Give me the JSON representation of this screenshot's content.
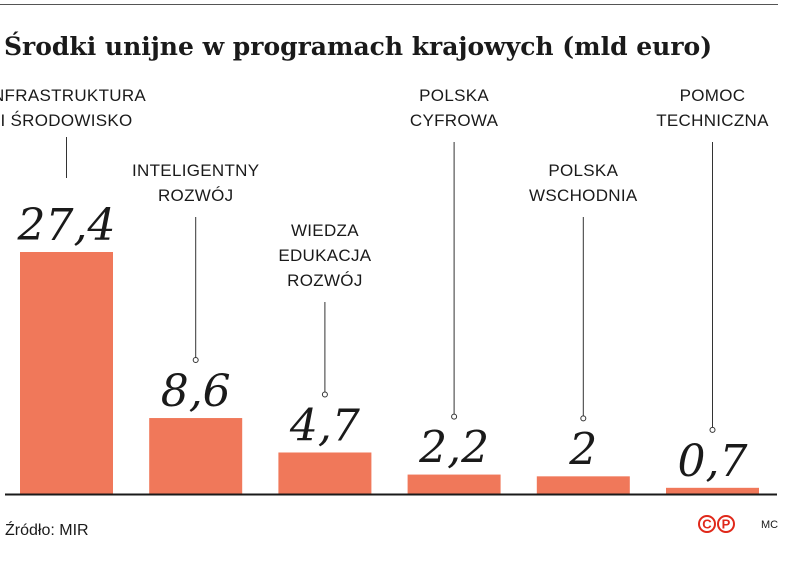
{
  "chart_data": {
    "type": "bar",
    "title": "Środki unijne w programach krajowych (mld euro)",
    "categories": [
      [
        "INFRASTRUKTURA",
        "I ŚRODOWISKO"
      ],
      [
        "INTELIGENTNY",
        "ROZWÓJ"
      ],
      [
        "WIEDZA",
        "EDUKACJA",
        "ROZWÓJ"
      ],
      [
        "POLSKA",
        "CYFROWA"
      ],
      [
        "POLSKA",
        "WSCHODNIA"
      ],
      [
        "POMOC",
        "TECHNICZNA"
      ]
    ],
    "values": [
      27.4,
      8.6,
      4.7,
      2.2,
      2,
      0.7
    ],
    "value_labels": [
      "27,4",
      "8,6",
      "4,7",
      "2,2",
      "2",
      "0,7"
    ],
    "ylim": [
      0,
      27.4
    ],
    "grid": false,
    "legend": "none",
    "bar_color": "#f0785a"
  },
  "footer": {
    "source": "Źródło: MIR",
    "logo_letters": [
      "C",
      "P"
    ],
    "logo_color": "#e0281a",
    "credit": "MC"
  }
}
